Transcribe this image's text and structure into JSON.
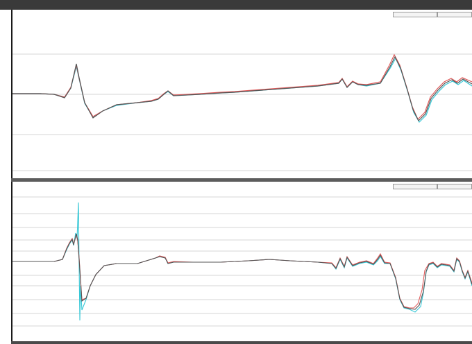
{
  "window": {
    "top_pane_title": "",
    "bottom_pane_title": "",
    "top_legend_1": "",
    "top_legend_2": "",
    "bottom_legend_1": "",
    "bottom_legend_2": "",
    "top_axis_note": "",
    "bottom_axis_note": ""
  },
  "colors": {
    "trace_a": "#555555",
    "trace_b": "#e05a5a",
    "trace_c": "#35c7d6",
    "grid": "#d6d6d6",
    "frame": "#3a3a3a"
  },
  "icons": {
    "splitter": "pane-splitter-handle"
  }
}
